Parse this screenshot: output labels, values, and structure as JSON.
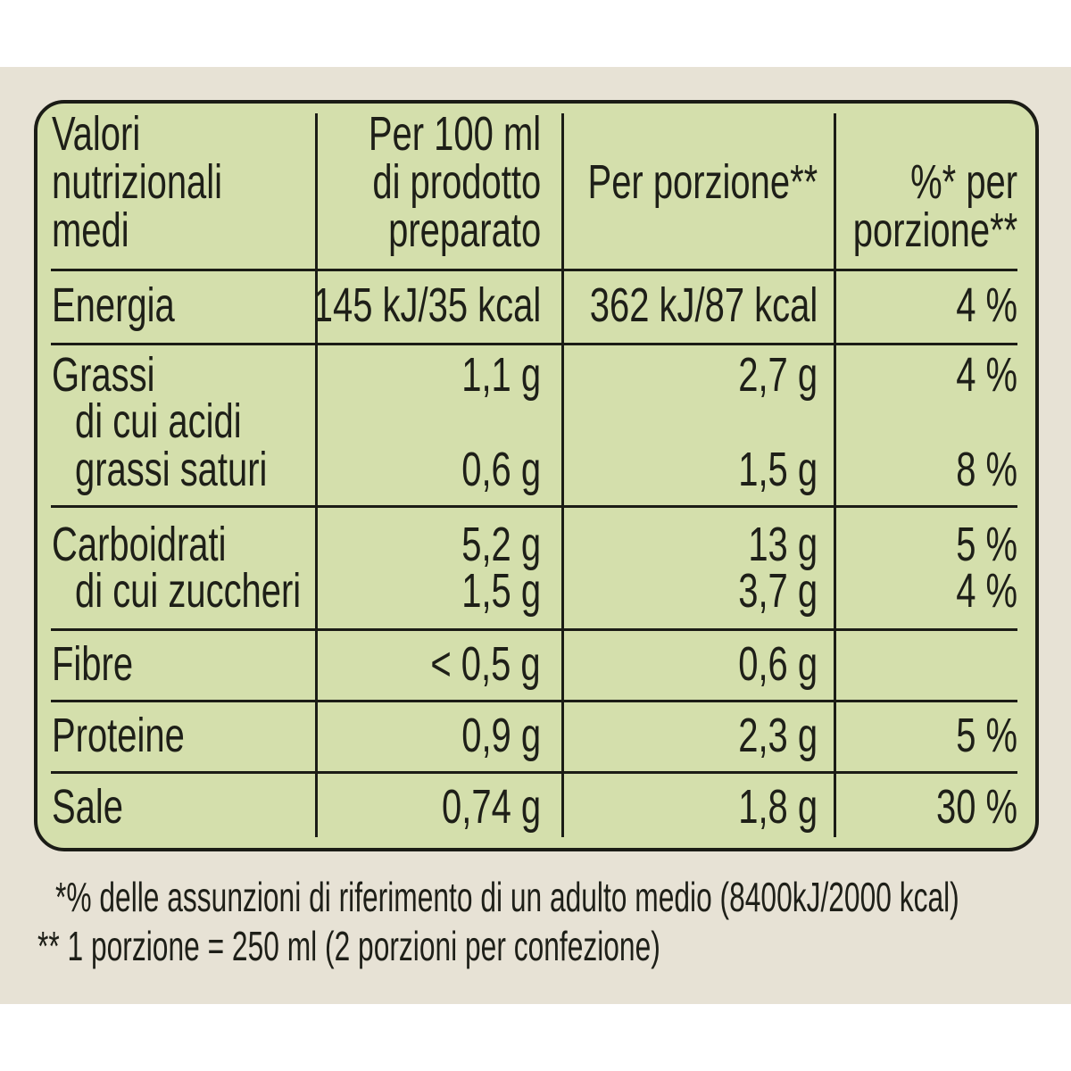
{
  "colors": {
    "table_bg": "#d4dfac",
    "page_bg": "#e7e2d5",
    "border": "#1b1c16"
  },
  "header": {
    "col1": [
      "Valori",
      "nutrizionali",
      "medi"
    ],
    "col2": [
      "Per 100 ml",
      "di prodotto",
      "preparato"
    ],
    "col3": "Per porzione**",
    "col4": [
      "%* per",
      "porzione**"
    ]
  },
  "rows": [
    {
      "label": "Energia",
      "per100": "145 kJ/35 kcal",
      "portion": "362 kJ/87 kcal",
      "pct": "4 %"
    },
    {
      "label": "Grassi",
      "per100": "1,1 g",
      "portion": "2,7 g",
      "pct": "4 %"
    },
    {
      "label": [
        "di cui acidi",
        "grassi saturi"
      ],
      "per100": "0,6 g",
      "portion": "1,5 g",
      "pct": "8 %"
    },
    {
      "label": "Carboidrati",
      "per100": "5,2 g",
      "portion": "13 g",
      "pct": "5 %"
    },
    {
      "label": "di cui zuccheri",
      "per100": "1,5 g",
      "portion": "3,7 g",
      "pct": "4 %"
    },
    {
      "label": "Fibre",
      "per100": "< 0,5 g",
      "portion": "0,6 g",
      "pct": ""
    },
    {
      "label": "Proteine",
      "per100": "0,9 g",
      "portion": "2,3 g",
      "pct": "5 %"
    },
    {
      "label": "Sale",
      "per100": "0,74 g",
      "portion": "1,8 g",
      "pct": "30 %"
    }
  ],
  "footnotes": [
    "*% delle assunzioni di riferimento di un adulto medio (8400kJ/2000 kcal)",
    "** 1 porzione = 250 ml (2 porzioni per confezione)"
  ]
}
